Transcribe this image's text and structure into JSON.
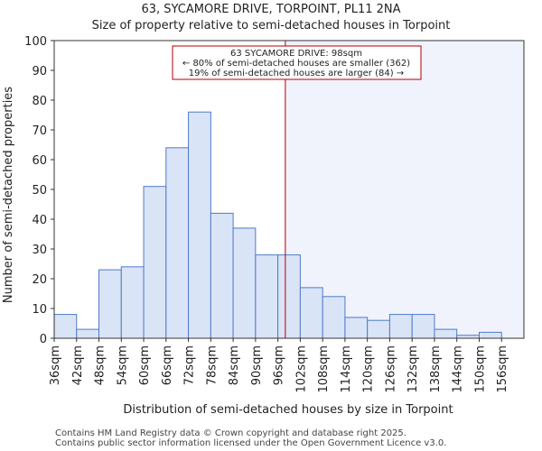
{
  "chart_data": {
    "type": "bar",
    "title_line1": "63, SYCAMORE DRIVE, TORPOINT, PL11 2NA",
    "title_line2": "Size of property relative to semi-detached houses in Torpoint",
    "xlabel": "Distribution of semi-detached houses by size in Torpoint",
    "ylabel": "Number of semi-detached properties",
    "categories": [
      "36sqm",
      "42sqm",
      "48sqm",
      "54sqm",
      "60sqm",
      "66sqm",
      "72sqm",
      "78sqm",
      "84sqm",
      "90sqm",
      "96sqm",
      "102sqm",
      "108sqm",
      "114sqm",
      "120sqm",
      "126sqm",
      "132sqm",
      "138sqm",
      "144sqm",
      "150sqm",
      "156sqm"
    ],
    "bin_edges": [
      36,
      42,
      48,
      54,
      60,
      66,
      72,
      78,
      84,
      90,
      96,
      102,
      108,
      114,
      120,
      126,
      132,
      138,
      144,
      150,
      156,
      162
    ],
    "values": [
      8,
      3,
      23,
      24,
      51,
      64,
      76,
      42,
      37,
      28,
      28,
      17,
      14,
      7,
      6,
      8,
      8,
      3,
      1,
      2,
      0
    ],
    "ylim": [
      0,
      100
    ],
    "yticks": [
      0,
      10,
      20,
      30,
      40,
      50,
      60,
      70,
      80,
      90,
      100
    ],
    "marker_value": 98,
    "annotation": {
      "line1": "63 SYCAMORE DRIVE: 98sqm",
      "line2": "← 80% of semi-detached houses are smaller (362)",
      "line3": "19% of semi-detached houses are larger (84) →"
    },
    "colors": {
      "bar_fill": "#dae4f7",
      "bar_stroke": "#4d7cc7",
      "marker": "#b40000",
      "highlight_bg": "#f0f2fc",
      "axis": "#333333"
    }
  },
  "footer": {
    "line1": "Contains HM Land Registry data © Crown copyright and database right 2025.",
    "line2": "Contains public sector information licensed under the Open Government Licence v3.0."
  }
}
